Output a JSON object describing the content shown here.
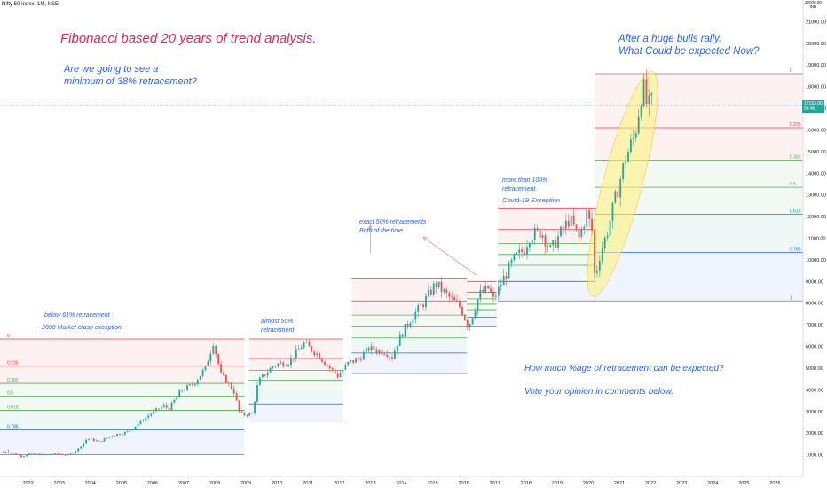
{
  "header": {
    "symbol_label": "Nifty 50 Index, 1M, NSE"
  },
  "price_tag": {
    "price": "17153.00",
    "countdown": "9d 4h"
  },
  "currency": {
    "top": "22000.00",
    "code": "INR"
  },
  "annotations": {
    "title": "Fibonacci based 20 years of trend analysis.",
    "question_1": "Are we going to see a",
    "question_2": "minimum of 38% retracement?",
    "rally_1": "After a huge bulls rally.",
    "rally_2": "What Could be expected Now?",
    "below61_1": "below 61% retracement",
    "below61_2": "2008 Market crash exception",
    "almost50_1": "almost 50%",
    "almost50_2": "retracement",
    "exact50_1": "exact 50% retracements",
    "exact50_2": "Both of the time",
    "more100_1": "more than 100%",
    "more100_2": "retracement",
    "covid": "Covid-19 Exception",
    "how_much": "How much %age of retracement can be expected?",
    "vote": "Vote your opinion in comments below."
  },
  "chart_data": {
    "type": "candlestick",
    "symbol": "Nifty 50 Index, 1M, NSE",
    "interval": "1M",
    "ylim": [
      0,
      22000
    ],
    "xlim": [
      2001.1,
      2026.9
    ],
    "y_ticks": [
      "1000.00",
      "2000.00",
      "3000.00",
      "4000.00",
      "5000.00",
      "6000.00",
      "7000.00",
      "8000.00",
      "9000.00",
      "10000.00",
      "11000.00",
      "12000.00",
      "13000.00",
      "14000.00",
      "15000.00",
      "16000.00",
      "17000.00",
      "18000.00",
      "19000.00",
      "20000.00",
      "21000.00",
      "22000.00"
    ],
    "x_ticks": [
      "2002",
      "2003",
      "2004",
      "2005",
      "2006",
      "2007",
      "2008",
      "2009",
      "2010",
      "2011",
      "2012",
      "2013",
      "2014",
      "2015",
      "2016",
      "2017",
      "2018",
      "2019",
      "2020",
      "2021",
      "2022",
      "2023",
      "2024",
      "2025",
      "2026"
    ],
    "last_price": 17153,
    "close_path": [
      [
        2001.2,
        1150
      ],
      [
        2001.6,
        1050
      ],
      [
        2001.8,
        900
      ],
      [
        2002.0,
        1050
      ],
      [
        2002.5,
        1000
      ],
      [
        2002.9,
        1050
      ],
      [
        2003.3,
        980
      ],
      [
        2003.6,
        1250
      ],
      [
        2003.9,
        1750
      ],
      [
        2004.3,
        1600
      ],
      [
        2004.7,
        1900
      ],
      [
        2005.2,
        2050
      ],
      [
        2005.9,
        2850
      ],
      [
        2006.4,
        3300
      ],
      [
        2006.5,
        3050
      ],
      [
        2006.9,
        3950
      ],
      [
        2007.3,
        4250
      ],
      [
        2007.7,
        5000
      ],
      [
        2007.95,
        6200
      ],
      [
        2008.2,
        4700
      ],
      [
        2008.6,
        4000
      ],
      [
        2008.8,
        2900
      ],
      [
        2008.95,
        2850
      ],
      [
        2009.2,
        2900
      ],
      [
        2009.4,
        4400
      ],
      [
        2009.9,
        5150
      ],
      [
        2010.4,
        5300
      ],
      [
        2010.85,
        6150
      ],
      [
        2011.3,
        5650
      ],
      [
        2011.7,
        5000
      ],
      [
        2011.95,
        4650
      ],
      [
        2012.3,
        5250
      ],
      [
        2012.6,
        5400
      ],
      [
        2012.95,
        5900
      ],
      [
        2013.5,
        5750
      ],
      [
        2013.7,
        5500
      ],
      [
        2013.9,
        6300
      ],
      [
        2014.3,
        7300
      ],
      [
        2014.7,
        8000
      ],
      [
        2015.1,
        8900
      ],
      [
        2015.5,
        8300
      ],
      [
        2015.9,
        7800
      ],
      [
        2016.15,
        6900
      ],
      [
        2016.5,
        8400
      ],
      [
        2016.8,
        8700
      ],
      [
        2016.95,
        8150
      ],
      [
        2017.3,
        9200
      ],
      [
        2017.6,
        10000
      ],
      [
        2017.95,
        10500
      ],
      [
        2018.1,
        11100
      ],
      [
        2018.5,
        11300
      ],
      [
        2018.8,
        10400
      ],
      [
        2018.95,
        10850
      ],
      [
        2019.4,
        11900
      ],
      [
        2019.7,
        11000
      ],
      [
        2019.95,
        12150
      ],
      [
        2020.15,
        11200
      ],
      [
        2020.22,
        8600
      ],
      [
        2020.3,
        9900
      ],
      [
        2020.6,
        11250
      ],
      [
        2020.9,
        13000
      ],
      [
        2021.2,
        14700
      ],
      [
        2021.5,
        15800
      ],
      [
        2021.7,
        17600
      ],
      [
        2021.8,
        17900
      ],
      [
        2021.9,
        16900
      ],
      [
        2022.0,
        17300
      ],
      [
        2022.1,
        17150
      ]
    ],
    "fib_sets": [
      {
        "name": "2003-2008",
        "x": [
          2001.1,
          2008.95
        ],
        "top": 6350,
        "bottom": 1000,
        "levels": [
          {
            "label": "0",
            "value": 6350,
            "color": "#f23645"
          },
          {
            "label": "0.236",
            "value": 5100,
            "color": "#f23645"
          },
          {
            "label": "0.382",
            "value": 4300,
            "color": "#4caf50"
          },
          {
            "label": "0.5",
            "value": 3700,
            "color": "#4caf50"
          },
          {
            "label": "0.618",
            "value": 3050,
            "color": "#4caf50"
          },
          {
            "label": "0.786",
            "value": 2150,
            "color": "#2962ff"
          },
          {
            "label": "1",
            "value": 1000,
            "color": "#787b86"
          }
        ]
      },
      {
        "name": "2009-2012",
        "x": [
          2009.1,
          2012.1
        ],
        "top": 6350,
        "bottom": 2550,
        "levels": [
          {
            "label": "",
            "value": 6350,
            "color": "#f23645"
          },
          {
            "label": "",
            "value": 5450,
            "color": "#f23645"
          },
          {
            "label": "",
            "value": 4900,
            "color": "#4caf50"
          },
          {
            "label": "",
            "value": 4450,
            "color": "#4caf50"
          },
          {
            "label": "",
            "value": 4000,
            "color": "#4caf50"
          },
          {
            "label": "",
            "value": 3350,
            "color": "#2962ff"
          },
          {
            "label": "",
            "value": 2550,
            "color": "#787b86"
          }
        ]
      },
      {
        "name": "2013-2015",
        "x": [
          2012.4,
          2016.1
        ],
        "top": 9150,
        "bottom": 4750,
        "levels": [
          {
            "label": "",
            "value": 9150,
            "color": "#f23645"
          },
          {
            "label": "",
            "value": 8100,
            "color": "#f23645"
          },
          {
            "label": "",
            "value": 7450,
            "color": "#4caf50"
          },
          {
            "label": "",
            "value": 6950,
            "color": "#4caf50"
          },
          {
            "label": "",
            "value": 6400,
            "color": "#4caf50"
          },
          {
            "label": "",
            "value": 5700,
            "color": "#2962ff"
          },
          {
            "label": "",
            "value": 4750,
            "color": "#787b86"
          }
        ]
      },
      {
        "name": "2016-2017",
        "x": [
          2016.1,
          2017.05
        ],
        "top": 9000,
        "bottom": 6950,
        "levels": [
          {
            "label": "",
            "value": 9000,
            "color": "#f23645"
          },
          {
            "label": "",
            "value": 8500,
            "color": "#f23645"
          },
          {
            "label": "",
            "value": 8200,
            "color": "#4caf50"
          },
          {
            "label": "",
            "value": 7950,
            "color": "#4caf50"
          },
          {
            "label": "",
            "value": 7700,
            "color": "#4caf50"
          },
          {
            "label": "",
            "value": 7350,
            "color": "#2962ff"
          },
          {
            "label": "",
            "value": 6950,
            "color": "#787b86"
          }
        ]
      },
      {
        "name": "2017-2020",
        "x": [
          2017.1,
          2020.25
        ],
        "top": 12400,
        "bottom": 8100,
        "levels": [
          {
            "label": "",
            "value": 12400,
            "color": "#f23645"
          },
          {
            "label": "",
            "value": 11400,
            "color": "#f23645"
          },
          {
            "label": "",
            "value": 10750,
            "color": "#4caf50"
          },
          {
            "label": "",
            "value": 10250,
            "color": "#4caf50"
          },
          {
            "label": "",
            "value": 9750,
            "color": "#4caf50"
          },
          {
            "label": "",
            "value": 9000,
            "color": "#2962ff"
          },
          {
            "label": "",
            "value": 8100,
            "color": "#787b86"
          }
        ]
      },
      {
        "name": "2020-2022",
        "x": [
          2020.2,
          2026.9
        ],
        "top": 18600,
        "bottom": 8100,
        "levels": [
          {
            "label": "0",
            "value": 18600,
            "color": "#787b86"
          },
          {
            "label": "0.236",
            "value": 16100,
            "color": "#f23645"
          },
          {
            "label": "0.382",
            "value": 14600,
            "color": "#4caf50"
          },
          {
            "label": "0.5",
            "value": 13350,
            "color": "#4caf50"
          },
          {
            "label": "0.618",
            "value": 12100,
            "color": "#009688"
          },
          {
            "label": "0.786",
            "value": 10350,
            "color": "#2962ff"
          },
          {
            "label": "1",
            "value": 8100,
            "color": "#787b86"
          }
        ]
      }
    ],
    "highlight_ellipse": {
      "x_range": [
        2020.15,
        2022.05
      ],
      "y_range": [
        8300,
        18700
      ],
      "color": "#fff176"
    },
    "arrows": [
      {
        "from": [
          2013.0,
          10300
        ],
        "to": [
          2013.0,
          11600
        ]
      },
      {
        "from": [
          2016.4,
          9300
        ],
        "to": [
          2014.7,
          11050
        ]
      }
    ],
    "colors": {
      "up": "#26a69a",
      "down": "#ef5350",
      "axis_text": "#131722"
    }
  }
}
